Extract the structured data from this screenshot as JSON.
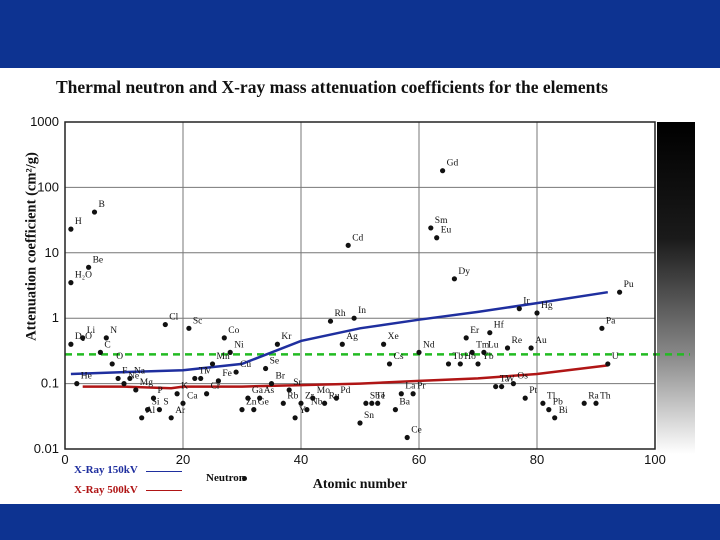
{
  "chart_data": {
    "type": "scatter",
    "title": "Thermal neutron and X-ray mass attenuation coefficients for the elements",
    "xlabel": "Atomic number",
    "ylabel": "Attenuation coefficient (cm²/g)",
    "xlim": [
      0,
      100
    ],
    "ylim": [
      0.01,
      1000
    ],
    "y_scale": "log",
    "x_ticks": [
      "0",
      "20",
      "40",
      "60",
      "80",
      "100"
    ],
    "y_ticks": [
      "0.01",
      "0.1",
      "1",
      "10",
      "100",
      "1000"
    ],
    "grid": true,
    "colors": {
      "xray150": "#1f2f9f",
      "xray500": "#b01515",
      "neutron": "#111111",
      "reference": "#22bb22",
      "band": "#0d3391"
    },
    "legend": {
      "placement": "bottom-left",
      "xray150": "X-Ray 150kV",
      "xray500": "X-Ray 500kV",
      "neutron": "Neutron"
    },
    "series_xray150": {
      "name": "X-Ray 150kV",
      "x": [
        1,
        10,
        20,
        30,
        40,
        50,
        60,
        70,
        80,
        92
      ],
      "y": [
        0.14,
        0.15,
        0.16,
        0.2,
        0.45,
        0.7,
        0.95,
        1.25,
        1.7,
        2.5
      ]
    },
    "series_xray500": {
      "name": "X-Ray 500kV",
      "x": [
        3,
        10,
        18,
        20,
        30,
        40,
        50,
        60,
        70,
        80,
        92
      ],
      "y": [
        0.09,
        0.09,
        0.085,
        0.09,
        0.09,
        0.095,
        0.1,
        0.11,
        0.12,
        0.14,
        0.19
      ]
    },
    "reference_line": {
      "y": 0.28
    },
    "neutron_points": [
      {
        "label": "H",
        "x": 1,
        "y": 23
      },
      {
        "label": "B",
        "x": 5,
        "y": 42
      },
      {
        "label": "Be",
        "x": 4,
        "y": 6
      },
      {
        "label": "H₂O",
        "x": 1,
        "y": 3.5
      },
      {
        "label": "D₂O",
        "x": 1,
        "y": 0.4
      },
      {
        "label": "He",
        "x": 2,
        "y": 0.1
      },
      {
        "label": "Li",
        "x": 3,
        "y": 0.5
      },
      {
        "label": "C",
        "x": 6,
        "y": 0.3
      },
      {
        "label": "N",
        "x": 7,
        "y": 0.5
      },
      {
        "label": "O",
        "x": 8,
        "y": 0.2
      },
      {
        "label": "F",
        "x": 9,
        "y": 0.12
      },
      {
        "label": "Ne",
        "x": 10,
        "y": 0.1
      },
      {
        "label": "Na",
        "x": 11,
        "y": 0.12
      },
      {
        "label": "Mg",
        "x": 12,
        "y": 0.08
      },
      {
        "label": "Al",
        "x": 13,
        "y": 0.03
      },
      {
        "label": "Si",
        "x": 14,
        "y": 0.04
      },
      {
        "label": "P",
        "x": 15,
        "y": 0.06
      },
      {
        "label": "S",
        "x": 16,
        "y": 0.04
      },
      {
        "label": "Cl",
        "x": 17,
        "y": 0.8
      },
      {
        "label": "Ar",
        "x": 18,
        "y": 0.03
      },
      {
        "label": "K",
        "x": 19,
        "y": 0.07
      },
      {
        "label": "Ca",
        "x": 20,
        "y": 0.05
      },
      {
        "label": "Sc",
        "x": 21,
        "y": 0.7
      },
      {
        "label": "Ti",
        "x": 22,
        "y": 0.12
      },
      {
        "label": "V",
        "x": 23,
        "y": 0.12
      },
      {
        "label": "Cr",
        "x": 24,
        "y": 0.07
      },
      {
        "label": "Mn",
        "x": 25,
        "y": 0.2
      },
      {
        "label": "Fe",
        "x": 26,
        "y": 0.11
      },
      {
        "label": "Co",
        "x": 27,
        "y": 0.5
      },
      {
        "label": "Ni",
        "x": 28,
        "y": 0.3
      },
      {
        "label": "Cu",
        "x": 29,
        "y": 0.15
      },
      {
        "label": "Zn",
        "x": 30,
        "y": 0.04
      },
      {
        "label": "Ga",
        "x": 31,
        "y": 0.06
      },
      {
        "label": "Ge",
        "x": 32,
        "y": 0.04
      },
      {
        "label": "As",
        "x": 33,
        "y": 0.06
      },
      {
        "label": "Se",
        "x": 34,
        "y": 0.17
      },
      {
        "label": "Br",
        "x": 35,
        "y": 0.1
      },
      {
        "label": "Kr",
        "x": 36,
        "y": 0.4
      },
      {
        "label": "Rb",
        "x": 37,
        "y": 0.05
      },
      {
        "label": "Sr",
        "x": 38,
        "y": 0.08
      },
      {
        "label": "Y",
        "x": 39,
        "y": 0.03
      },
      {
        "label": "Zr",
        "x": 40,
        "y": 0.05
      },
      {
        "label": "Nb",
        "x": 41,
        "y": 0.04
      },
      {
        "label": "Mo",
        "x": 42,
        "y": 0.06
      },
      {
        "label": "Ru",
        "x": 44,
        "y": 0.05
      },
      {
        "label": "Rh",
        "x": 45,
        "y": 0.9
      },
      {
        "label": "Pd",
        "x": 46,
        "y": 0.06
      },
      {
        "label": "Ag",
        "x": 47,
        "y": 0.4
      },
      {
        "label": "Cd",
        "x": 48,
        "y": 13
      },
      {
        "label": "In",
        "x": 49,
        "y": 1.0
      },
      {
        "label": "Sn",
        "x": 50,
        "y": 0.025
      },
      {
        "label": "Sb",
        "x": 51,
        "y": 0.05
      },
      {
        "label": "Te",
        "x": 52,
        "y": 0.05
      },
      {
        "label": "I",
        "x": 53,
        "y": 0.05
      },
      {
        "label": "Xe",
        "x": 54,
        "y": 0.4
      },
      {
        "label": "Cs",
        "x": 55,
        "y": 0.2
      },
      {
        "label": "Ba",
        "x": 56,
        "y": 0.04
      },
      {
        "label": "La",
        "x": 57,
        "y": 0.07
      },
      {
        "label": "Ce",
        "x": 58,
        "y": 0.015
      },
      {
        "label": "Pr",
        "x": 59,
        "y": 0.07
      },
      {
        "label": "Nd",
        "x": 60,
        "y": 0.3
      },
      {
        "label": "Sm",
        "x": 62,
        "y": 24
      },
      {
        "label": "Eu",
        "x": 63,
        "y": 17
      },
      {
        "label": "Gd",
        "x": 64,
        "y": 180
      },
      {
        "label": "Tb",
        "x": 65,
        "y": 0.2
      },
      {
        "label": "Dy",
        "x": 66,
        "y": 4.0
      },
      {
        "label": "Ho",
        "x": 67,
        "y": 0.2
      },
      {
        "label": "Er",
        "x": 68,
        "y": 0.5
      },
      {
        "label": "Tm",
        "x": 69,
        "y": 0.3
      },
      {
        "label": "Yb",
        "x": 70,
        "y": 0.2
      },
      {
        "label": "Lu",
        "x": 71,
        "y": 0.3
      },
      {
        "label": "Hf",
        "x": 72,
        "y": 0.6
      },
      {
        "label": "Ta",
        "x": 73,
        "y": 0.09
      },
      {
        "label": "W",
        "x": 74,
        "y": 0.09
      },
      {
        "label": "Re",
        "x": 75,
        "y": 0.35
      },
      {
        "label": "Os",
        "x": 76,
        "y": 0.1
      },
      {
        "label": "Ir",
        "x": 77,
        "y": 1.4
      },
      {
        "label": "Pt",
        "x": 78,
        "y": 0.06
      },
      {
        "label": "Au",
        "x": 79,
        "y": 0.35
      },
      {
        "label": "Hg",
        "x": 80,
        "y": 1.2
      },
      {
        "label": "Tl",
        "x": 81,
        "y": 0.05
      },
      {
        "label": "Pb",
        "x": 82,
        "y": 0.04
      },
      {
        "label": "Bi",
        "x": 83,
        "y": 0.03
      },
      {
        "label": "Ra",
        "x": 88,
        "y": 0.05
      },
      {
        "label": "Th",
        "x": 90,
        "y": 0.05
      },
      {
        "label": "Pa",
        "x": 91,
        "y": 0.7
      },
      {
        "label": "U",
        "x": 92,
        "y": 0.2
      },
      {
        "label": "Pu",
        "x": 94,
        "y": 2.5
      }
    ]
  }
}
